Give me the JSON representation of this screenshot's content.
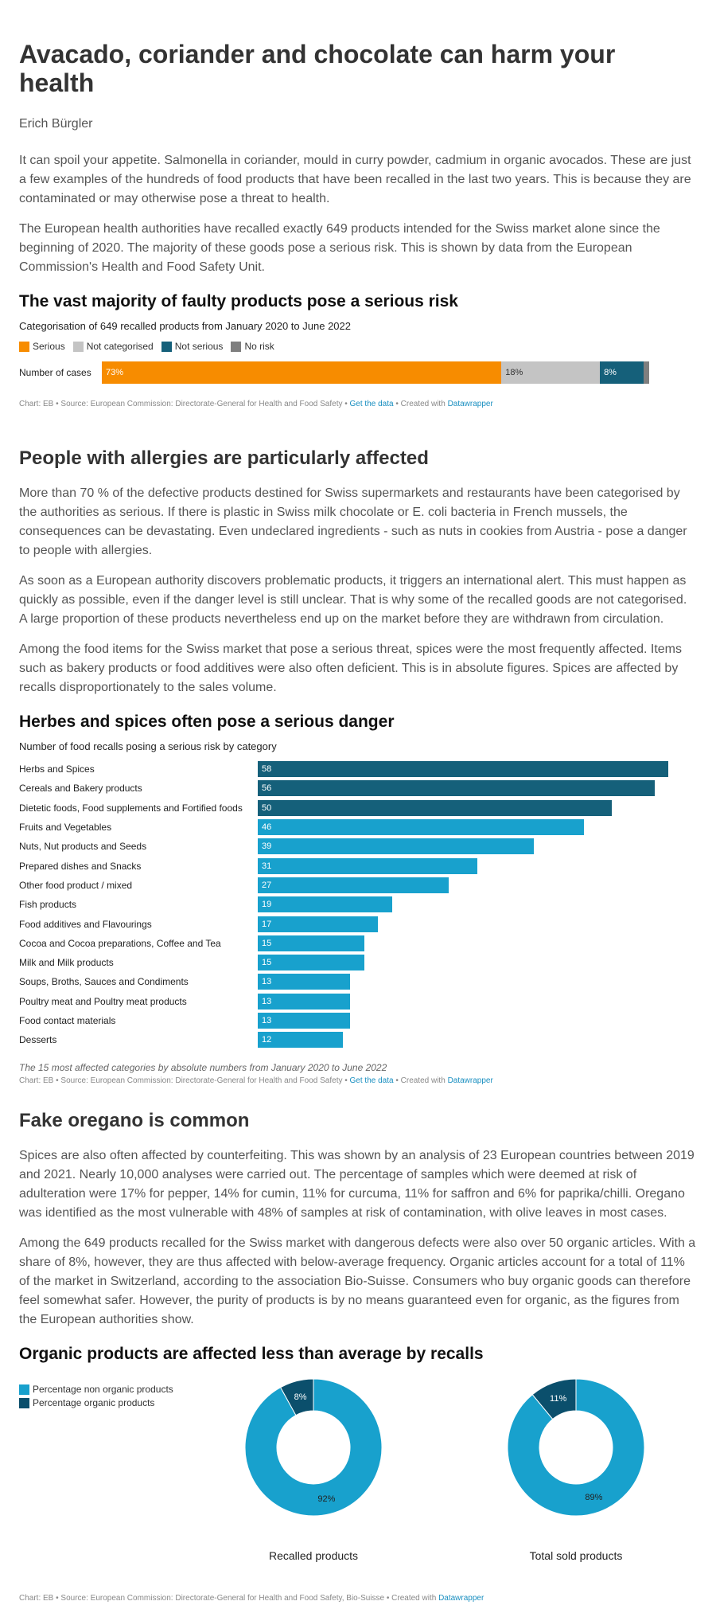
{
  "article": {
    "title": "Avacado, coriander and chocolate can harm your health",
    "author": "Erich Bürgler",
    "p1": "It can spoil your appetite. Salmonella in coriander, mould in curry powder, cadmium in organic avocados. These are just a few examples of the hundreds of food products that have been recalled in the last two years. This is because they are contaminated or may otherwise pose a threat to health.",
    "p2": "The European health authorities have recalled exactly 649 products intended for the Swiss market alone since the beginning of 2020. The majority of these goods pose a serious risk. This is shown by data from the European Commission's Health and Food Safety Unit.",
    "h_allergies": "People with allergies are particularly affected",
    "p3": "More than 70 % of the defective products destined for Swiss supermarkets and restaurants have been categorised by the authorities as serious. If there is plastic in Swiss milk chocolate or E. coli bacteria in French mussels, the consequences can be devastating. Even undeclared ingredients - such as nuts in cookies from Austria - pose a danger to people with allergies.",
    "p4": "As soon as a European authority discovers problematic products, it triggers an international alert. This must happen as quickly as possible, even if the danger level is still unclear. That is why some of the recalled goods are not categorised. A large proportion of these products nevertheless end up on the market before they are withdrawn from circulation.",
    "p5": "Among the food items for the Swiss market that pose a serious threat, spices were the most frequently affected. Items such as bakery products or food additives were also often deficient. This is in absolute figures. Spices are affected by recalls disproportionately to the sales volume.",
    "h_oregano": "Fake oregano is common",
    "p6": "Spices are also often affected by counterfeiting. This was shown by an analysis of 23 European countries between 2019 and 2021. Nearly 10,000 analyses were carried out. The percentage of samples which were deemed at risk of adulteration were 17% for pepper, 14% for cumin, 11% for curcuma, 11% for saffron and 6% for paprika/chilli. Oregano was identified as the most vulnerable with 48% of samples at risk of contamination, with olive leaves in most cases.",
    "p7": "Among the 649 products recalled for the Swiss market with dangerous defects were also over 50 organic articles. With a share of 8%, however, they are thus affected with below-average frequency. Organic articles account for a total of 11% of the market in Switzerland, according to the association Bio-Suisse. Consumers who buy organic goods can therefore feel somewhat safer. However, the purity of products is by no means guaranteed even for organic, as the figures from the European authorities show."
  },
  "chart_data": [
    {
      "type": "bar",
      "stacked": true,
      "orientation": "horizontal",
      "title": "The vast majority of faulty products pose a serious risk",
      "subtitle": "Categorisation of 649 recalled products from January 2020 to June 2022",
      "categories": [
        "Number of cases"
      ],
      "series": [
        {
          "name": "Serious",
          "values": [
            73
          ],
          "label": "73%",
          "color": "#f78c00"
        },
        {
          "name": "Not categorised",
          "values": [
            18
          ],
          "label": "18%",
          "color": "#c4c4c4"
        },
        {
          "name": "Not serious",
          "values": [
            8
          ],
          "label": "8%",
          "color": "#15607a"
        },
        {
          "name": "No risk",
          "values": [
            1
          ],
          "label": "",
          "color": "#7f7f7f"
        }
      ],
      "legend_placement": "top-left",
      "credit": {
        "prefix": "Chart: EB • Source: European Commission: Directorate-General for Health and Food Safety • ",
        "link1": "Get the data",
        "middle": " • Created with ",
        "link2": "Datawrapper"
      }
    },
    {
      "type": "bar",
      "orientation": "horizontal",
      "title": "Herbes and spices often pose a serious danger",
      "subtitle": "Number of food recalls posing a serious risk by category",
      "xlim": [
        0,
        62
      ],
      "categories": [
        "Herbs and Spices",
        "Cereals and Bakery products",
        "Dietetic foods, Food supplements and Fortified foods",
        "Fruits and Vegetables",
        "Nuts, Nut products and Seeds",
        "Prepared dishes and Snacks",
        "Other food product / mixed",
        "Fish products",
        "Food additives and Flavourings",
        "Cocoa and Cocoa preparations, Coffee and Tea",
        "Milk and Milk products",
        "Soups, Broths, Sauces and Condiments",
        "Poultry meat and Poultry meat products",
        "Food contact materials",
        "Desserts"
      ],
      "values": [
        58,
        56,
        50,
        46,
        39,
        31,
        27,
        19,
        17,
        15,
        15,
        13,
        13,
        13,
        12
      ],
      "colors": {
        "top3": "#15607a",
        "rest": "#18a1cd"
      },
      "caption": "The 15 most affected categories by absolute numbers from January 2020 to June 2022",
      "credit": {
        "prefix": "Chart: EB • Source: European Commission: Directorate-General for Health and Food Safety • ",
        "link1": "Get the data",
        "middle": " • Created with ",
        "link2": "Datawrapper"
      }
    },
    {
      "type": "pie",
      "donut": true,
      "title": "Organic products are affected less than average by recalls",
      "legend": [
        {
          "name": "Percentage non organic products",
          "color": "#18a1cd"
        },
        {
          "name": "Percentage organic products",
          "color": "#0b4f6c"
        }
      ],
      "charts": [
        {
          "label": "Recalled products",
          "slices": [
            {
              "name": "Percentage organic products",
              "value": 8,
              "label": "8%"
            },
            {
              "name": "Percentage non organic products",
              "value": 92,
              "label": "92%"
            }
          ]
        },
        {
          "label": "Total sold products",
          "slices": [
            {
              "name": "Percentage organic products",
              "value": 11,
              "label": "11%"
            },
            {
              "name": "Percentage non organic products",
              "value": 89,
              "label": "89%"
            }
          ]
        }
      ],
      "credit": {
        "prefix": "Chart: EB • Source: European Commission: Directorate-General for Health and Food Safety, Bio-Suisse • Created with ",
        "link2": "Datawrapper"
      }
    }
  ]
}
